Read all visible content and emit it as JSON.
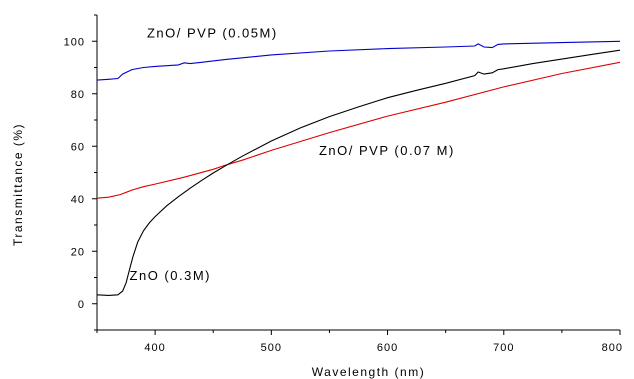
{
  "chart_data": {
    "type": "line",
    "xlabel": "Wavelength (nm)",
    "ylabel": "Transmittance (%)",
    "xlim": [
      350,
      800
    ],
    "ylim": [
      -10,
      110
    ],
    "xticks": [
      400,
      500,
      600,
      700,
      800
    ],
    "yticks": [
      0,
      20,
      40,
      60,
      80,
      100
    ],
    "grid": false,
    "legend": "none",
    "series": [
      {
        "name": "ZnO/ PVP (0.05M)",
        "color": "#0000cc",
        "x": [
          350,
          360,
          368,
          372,
          380,
          390,
          400,
          420,
          425,
          430,
          440,
          460,
          500,
          550,
          600,
          650,
          675,
          678,
          683,
          690,
          695,
          700,
          750,
          800
        ],
        "y": [
          85.2,
          85.5,
          85.8,
          87.5,
          89.2,
          90.0,
          90.4,
          91.0,
          91.8,
          91.5,
          92.0,
          93.0,
          94.8,
          96.3,
          97.2,
          97.8,
          98.2,
          99.0,
          97.8,
          97.6,
          98.8,
          99.0,
          99.5,
          100.0
        ]
      },
      {
        "name": "ZnO/ PVP (0.07 M)",
        "color": "#e00000",
        "x": [
          350,
          360,
          370,
          380,
          390,
          400,
          425,
          450,
          460,
          475,
          500,
          550,
          600,
          650,
          700,
          750,
          800
        ],
        "y": [
          40.2,
          40.6,
          41.6,
          43.3,
          44.6,
          45.6,
          48.2,
          51.2,
          52.7,
          54.7,
          58.4,
          65.2,
          71.5,
          76.8,
          82.6,
          87.7,
          92.0
        ]
      },
      {
        "name": "ZnO (0.3M)",
        "color": "#000000",
        "x": [
          350,
          360,
          368,
          372,
          375,
          378,
          381,
          385,
          390,
          395,
          400,
          410,
          420,
          430,
          440,
          450,
          460,
          475,
          500,
          525,
          550,
          575,
          600,
          625,
          650,
          675,
          678,
          683,
          690,
          695,
          700,
          725,
          750,
          775,
          800
        ],
        "y": [
          3.4,
          3.2,
          3.4,
          4.8,
          8.0,
          13.0,
          18.0,
          23.5,
          27.8,
          30.8,
          33.2,
          37.3,
          40.8,
          44.0,
          47.0,
          49.8,
          52.4,
          56.2,
          62.0,
          67.0,
          71.3,
          75.0,
          78.5,
          81.3,
          84.0,
          86.9,
          88.3,
          87.5,
          88.0,
          89.2,
          89.5,
          91.5,
          93.2,
          94.9,
          96.6
        ]
      }
    ],
    "annotations": [
      {
        "text": "ZnO/ PVP (0.05M)",
        "x": 393,
        "y": 101.5
      },
      {
        "text": "ZnO/ PVP (0.07 M)",
        "x": 541,
        "y": 56.7
      },
      {
        "text": "ZnO (0.3M)",
        "x": 378,
        "y": 9.0
      }
    ]
  }
}
